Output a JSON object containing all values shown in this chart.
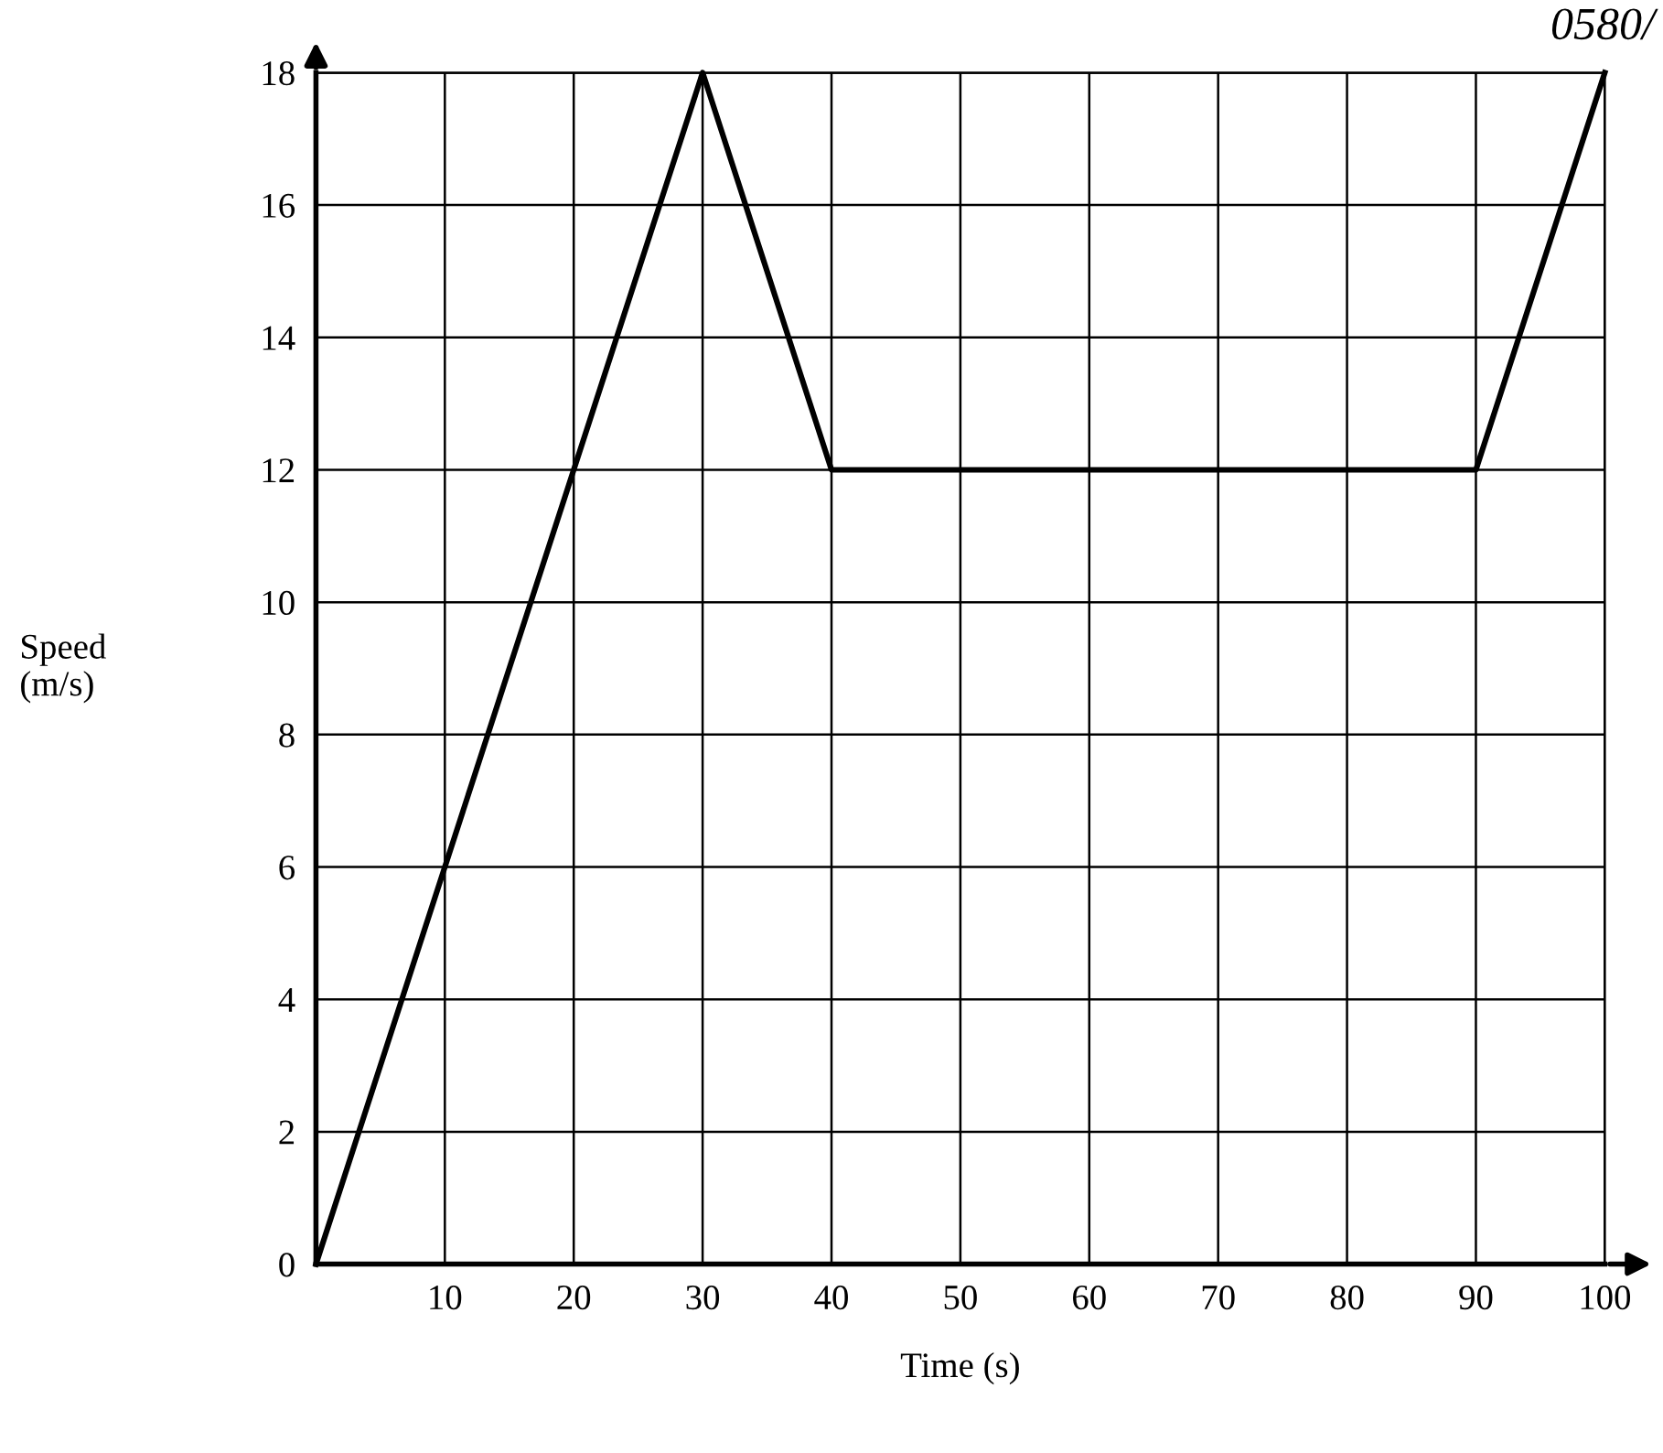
{
  "chart_data": {
    "type": "line",
    "xlabel": "Time (s)",
    "ylabel": "Speed\n(m/s)",
    "annotations": [
      "0580/"
    ],
    "series": [
      {
        "color": "#000000",
        "x": [
          0,
          30,
          40,
          90,
          100
        ],
        "values": [
          0,
          18,
          12,
          12,
          18
        ]
      }
    ],
    "xlim": [
      0,
      100
    ],
    "ylim": [
      0,
      18
    ],
    "xticks": [
      10,
      20,
      30,
      40,
      50,
      60,
      70,
      80,
      90,
      100
    ],
    "yticks": [
      0,
      2,
      4,
      6,
      8,
      10,
      12,
      14,
      16,
      18
    ],
    "grid": true,
    "marker": "none",
    "line_style": "solid"
  }
}
